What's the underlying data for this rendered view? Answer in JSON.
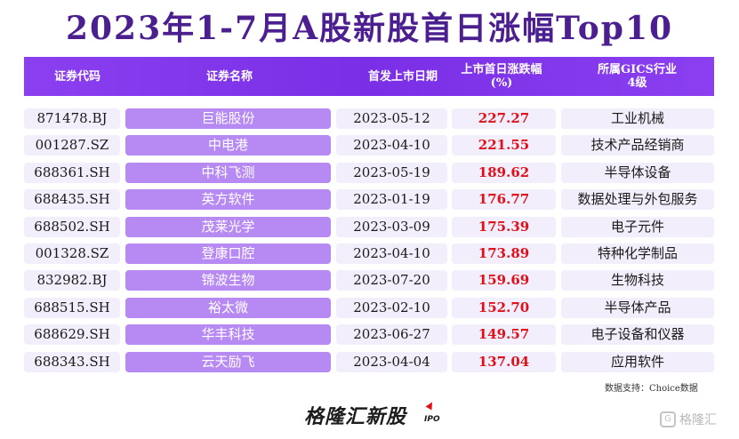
{
  "title": "2023年1-7月A股新股首日涨幅Top10",
  "header": {
    "code": "证券代码",
    "name": "证券名称",
    "date": "首发上市日期",
    "pct_line1": "上市首日涨跌幅",
    "pct_line2": "(%)",
    "ind_line1": "所属GICS行业",
    "ind_line2": "4级"
  },
  "rows": [
    {
      "code": "871478.BJ",
      "name": "巨能股份",
      "date": "2023-05-12",
      "pct": "227.27",
      "industry": "工业机械"
    },
    {
      "code": "001287.SZ",
      "name": "中电港",
      "date": "2023-04-10",
      "pct": "221.55",
      "industry": "技术产品经销商"
    },
    {
      "code": "688361.SH",
      "name": "中科飞测",
      "date": "2023-05-19",
      "pct": "189.62",
      "industry": "半导体设备"
    },
    {
      "code": "688435.SH",
      "name": "英方软件",
      "date": "2023-01-19",
      "pct": "176.77",
      "industry": "数据处理与外包服务"
    },
    {
      "code": "688502.SH",
      "name": "茂莱光学",
      "date": "2023-03-09",
      "pct": "175.39",
      "industry": "电子元件"
    },
    {
      "code": "001328.SZ",
      "name": "登康口腔",
      "date": "2023-04-10",
      "pct": "173.89",
      "industry": "特种化学制品"
    },
    {
      "code": "832982.BJ",
      "name": "锦波生物",
      "date": "2023-07-20",
      "pct": "159.69",
      "industry": "生物科技"
    },
    {
      "code": "688515.SH",
      "name": "裕太微",
      "date": "2023-02-10",
      "pct": "152.70",
      "industry": "半导体产品"
    },
    {
      "code": "688629.SH",
      "name": "华丰科技",
      "date": "2023-06-27",
      "pct": "149.57",
      "industry": "电子设备和仪器"
    },
    {
      "code": "688343.SH",
      "name": "云天励飞",
      "date": "2023-04-04",
      "pct": "137.04",
      "industry": "应用软件"
    }
  ],
  "source": "数据支持：Choice数据",
  "brand": "格隆汇新股",
  "brand_sub": "IPO",
  "watermark": "格隆汇",
  "colors": {
    "title": "#4b1f8f",
    "header_bg": "#7a2fe6",
    "name_cell": "#b689f3",
    "cell_bg": "#f3eefb",
    "pct_text": "#e0101a"
  }
}
